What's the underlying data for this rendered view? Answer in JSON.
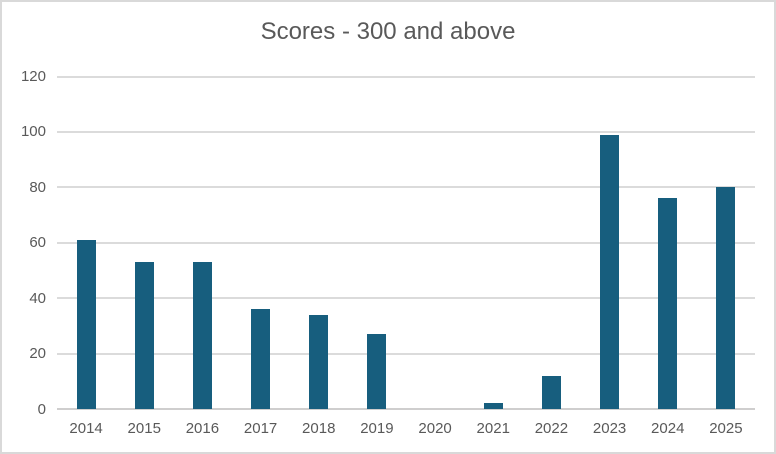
{
  "colors": {
    "bar": "#175e7e",
    "gridline": "#dbdbdb",
    "axis_line": "#cfcece",
    "text": "#595959",
    "frame_border": "#d9d9d9",
    "background": "#ffffff"
  },
  "chart_data": {
    "type": "bar",
    "title": "Scores - 300 and above",
    "categories": [
      "2014",
      "2015",
      "2016",
      "2017",
      "2018",
      "2019",
      "2020",
      "2021",
      "2022",
      "2023",
      "2024",
      "2025"
    ],
    "values": [
      61,
      53,
      53,
      36,
      34,
      27,
      0,
      2,
      12,
      99,
      76,
      80
    ],
    "xlabel": "",
    "ylabel": "",
    "ylim": [
      0,
      120
    ],
    "ytick_step": 20,
    "ytick_labels": [
      "0",
      "20",
      "40",
      "60",
      "80",
      "100",
      "120"
    ],
    "grid": "horizontal",
    "legend": "none"
  }
}
